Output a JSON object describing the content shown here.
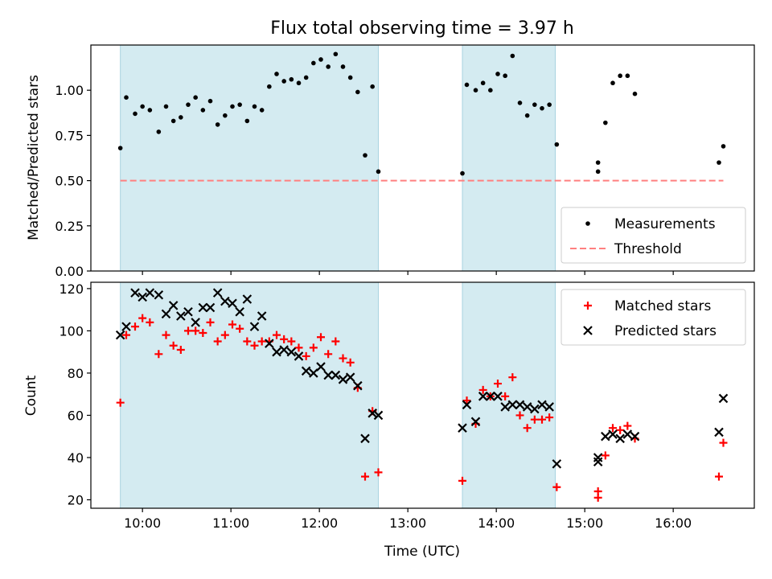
{
  "chart_data": [
    {
      "type": "scatter",
      "title": "Flux total observing time = 3.97 h",
      "ylabel": "Matched/Predicted stars",
      "xlabel": "",
      "xlim": [
        "09:25",
        "16:55"
      ],
      "ylim": [
        0,
        1.25
      ],
      "yticks": [
        "0.00",
        "0.25",
        "0.50",
        "0.75",
        "1.00"
      ],
      "ytick_values": [
        0,
        0.25,
        0.5,
        0.75,
        1.0
      ],
      "shaded_intervals": [
        [
          "09:45",
          "12:40"
        ],
        [
          "13:37",
          "14:40"
        ]
      ],
      "shade_color": "#d4ebf1",
      "legend_position": "lower right",
      "legend": [
        "Measurements",
        "Threshold"
      ],
      "series": [
        {
          "name": "Measurements",
          "marker": "dot",
          "color": "#000000",
          "points": [
            [
              "09:45",
              0.68
            ],
            [
              "09:49",
              0.96
            ],
            [
              "09:55",
              0.87
            ],
            [
              "10:00",
              0.91
            ],
            [
              "10:05",
              0.89
            ],
            [
              "10:11",
              0.77
            ],
            [
              "10:16",
              0.91
            ],
            [
              "10:21",
              0.83
            ],
            [
              "10:26",
              0.85
            ],
            [
              "10:31",
              0.92
            ],
            [
              "10:36",
              0.96
            ],
            [
              "10:41",
              0.89
            ],
            [
              "10:46",
              0.94
            ],
            [
              "10:51",
              0.81
            ],
            [
              "10:56",
              0.86
            ],
            [
              "11:01",
              0.91
            ],
            [
              "11:06",
              0.92
            ],
            [
              "11:11",
              0.83
            ],
            [
              "11:16",
              0.91
            ],
            [
              "11:21",
              0.89
            ],
            [
              "11:26",
              1.02
            ],
            [
              "11:31",
              1.09
            ],
            [
              "11:36",
              1.05
            ],
            [
              "11:41",
              1.06
            ],
            [
              "11:46",
              1.04
            ],
            [
              "11:51",
              1.07
            ],
            [
              "11:56",
              1.15
            ],
            [
              "12:01",
              1.17
            ],
            [
              "12:06",
              1.13
            ],
            [
              "12:11",
              1.2
            ],
            [
              "12:16",
              1.13
            ],
            [
              "12:21",
              1.07
            ],
            [
              "12:26",
              0.99
            ],
            [
              "12:31",
              0.64
            ],
            [
              "12:36",
              1.02
            ],
            [
              "12:40",
              0.55
            ],
            [
              "13:37",
              0.54
            ],
            [
              "13:40",
              1.03
            ],
            [
              "13:46",
              1.0
            ],
            [
              "13:51",
              1.04
            ],
            [
              "13:56",
              1.0
            ],
            [
              "14:01",
              1.09
            ],
            [
              "14:06",
              1.08
            ],
            [
              "14:11",
              1.19
            ],
            [
              "14:16",
              0.93
            ],
            [
              "14:21",
              0.86
            ],
            [
              "14:26",
              0.92
            ],
            [
              "14:31",
              0.9
            ],
            [
              "14:36",
              0.92
            ],
            [
              "14:41",
              0.7
            ],
            [
              "15:09",
              0.6
            ],
            [
              "15:09",
              0.55
            ],
            [
              "15:14",
              0.82
            ],
            [
              "15:19",
              1.04
            ],
            [
              "15:24",
              1.08
            ],
            [
              "15:29",
              1.08
            ],
            [
              "15:34",
              0.98
            ],
            [
              "16:31",
              0.6
            ],
            [
              "16:34",
              0.69
            ]
          ]
        },
        {
          "name": "Threshold",
          "marker": "dashed-line",
          "color": "#ff8080",
          "x": [
            "09:45",
            "16:34"
          ],
          "y": [
            0.5,
            0.5
          ]
        }
      ]
    },
    {
      "type": "scatter",
      "title": "",
      "ylabel": "Count",
      "xlabel": "Time (UTC)",
      "xlim": [
        "09:25",
        "16:55"
      ],
      "ylim": [
        16,
        123
      ],
      "yticks": [
        "20",
        "40",
        "60",
        "80",
        "100",
        "120"
      ],
      "ytick_values": [
        20,
        40,
        60,
        80,
        100,
        120
      ],
      "xticks": [
        "10:00",
        "11:00",
        "12:00",
        "13:00",
        "14:00",
        "15:00",
        "16:00"
      ],
      "shaded_intervals": [
        [
          "09:45",
          "12:40"
        ],
        [
          "13:37",
          "14:40"
        ]
      ],
      "shade_color": "#d4ebf1",
      "legend_position": "upper right",
      "legend": [
        "Matched stars",
        "Predicted stars"
      ],
      "series": [
        {
          "name": "Matched stars",
          "marker": "plus",
          "color": "#ff0000",
          "points": [
            [
              "09:45",
              66
            ],
            [
              "09:49",
              98
            ],
            [
              "09:55",
              102
            ],
            [
              "10:00",
              106
            ],
            [
              "10:05",
              104
            ],
            [
              "10:11",
              89
            ],
            [
              "10:16",
              98
            ],
            [
              "10:21",
              93
            ],
            [
              "10:26",
              91
            ],
            [
              "10:31",
              100
            ],
            [
              "10:36",
              100
            ],
            [
              "10:41",
              99
            ],
            [
              "10:46",
              104
            ],
            [
              "10:51",
              95
            ],
            [
              "10:56",
              98
            ],
            [
              "11:01",
              103
            ],
            [
              "11:06",
              101
            ],
            [
              "11:11",
              95
            ],
            [
              "11:16",
              93
            ],
            [
              "11:21",
              95
            ],
            [
              "11:26",
              95
            ],
            [
              "11:31",
              98
            ],
            [
              "11:36",
              96
            ],
            [
              "11:41",
              95
            ],
            [
              "11:46",
              92
            ],
            [
              "11:51",
              88
            ],
            [
              "11:56",
              92
            ],
            [
              "12:01",
              97
            ],
            [
              "12:06",
              89
            ],
            [
              "12:11",
              95
            ],
            [
              "12:16",
              87
            ],
            [
              "12:21",
              85
            ],
            [
              "12:26",
              73
            ],
            [
              "12:31",
              31
            ],
            [
              "12:36",
              62
            ],
            [
              "12:40",
              33
            ],
            [
              "13:37",
              29
            ],
            [
              "13:40",
              67
            ],
            [
              "13:46",
              56
            ],
            [
              "13:51",
              72
            ],
            [
              "13:56",
              69
            ],
            [
              "14:01",
              75
            ],
            [
              "14:06",
              69
            ],
            [
              "14:11",
              78
            ],
            [
              "14:16",
              60
            ],
            [
              "14:21",
              54
            ],
            [
              "14:26",
              58
            ],
            [
              "14:31",
              58
            ],
            [
              "14:36",
              59
            ],
            [
              "14:41",
              26
            ],
            [
              "15:09",
              24
            ],
            [
              "15:09",
              21
            ],
            [
              "15:14",
              41
            ],
            [
              "15:19",
              54
            ],
            [
              "15:24",
              53
            ],
            [
              "15:29",
              55
            ],
            [
              "15:34",
              49
            ],
            [
              "16:31",
              31
            ],
            [
              "16:34",
              47
            ]
          ]
        },
        {
          "name": "Predicted stars",
          "marker": "x",
          "color": "#000000",
          "points": [
            [
              "09:45",
              98
            ],
            [
              "09:49",
              102
            ],
            [
              "09:55",
              118
            ],
            [
              "10:00",
              116
            ],
            [
              "10:05",
              118
            ],
            [
              "10:11",
              117
            ],
            [
              "10:16",
              108
            ],
            [
              "10:21",
              112
            ],
            [
              "10:26",
              107
            ],
            [
              "10:31",
              109
            ],
            [
              "10:36",
              104
            ],
            [
              "10:41",
              111
            ],
            [
              "10:46",
              111
            ],
            [
              "10:51",
              118
            ],
            [
              "10:56",
              114
            ],
            [
              "11:01",
              113
            ],
            [
              "11:06",
              109
            ],
            [
              "11:11",
              115
            ],
            [
              "11:16",
              102
            ],
            [
              "11:21",
              107
            ],
            [
              "11:26",
              94
            ],
            [
              "11:31",
              90
            ],
            [
              "11:36",
              91
            ],
            [
              "11:41",
              90
            ],
            [
              "11:46",
              88
            ],
            [
              "11:51",
              81
            ],
            [
              "11:56",
              80
            ],
            [
              "12:01",
              83
            ],
            [
              "12:06",
              79
            ],
            [
              "12:11",
              79
            ],
            [
              "12:16",
              77
            ],
            [
              "12:21",
              78
            ],
            [
              "12:26",
              74
            ],
            [
              "12:31",
              49
            ],
            [
              "12:36",
              61
            ],
            [
              "12:40",
              60
            ],
            [
              "13:37",
              54
            ],
            [
              "13:40",
              65
            ],
            [
              "13:46",
              57
            ],
            [
              "13:51",
              69
            ],
            [
              "13:56",
              69
            ],
            [
              "14:01",
              69
            ],
            [
              "14:06",
              64
            ],
            [
              "14:11",
              65
            ],
            [
              "14:16",
              65
            ],
            [
              "14:21",
              64
            ],
            [
              "14:26",
              63
            ],
            [
              "14:31",
              65
            ],
            [
              "14:36",
              64
            ],
            [
              "14:41",
              37
            ],
            [
              "15:09",
              40
            ],
            [
              "15:09",
              38
            ],
            [
              "15:14",
              50
            ],
            [
              "15:19",
              51
            ],
            [
              "15:24",
              49
            ],
            [
              "15:29",
              51
            ],
            [
              "15:34",
              50
            ],
            [
              "16:31",
              52
            ],
            [
              "16:34",
              68
            ]
          ]
        }
      ]
    }
  ]
}
